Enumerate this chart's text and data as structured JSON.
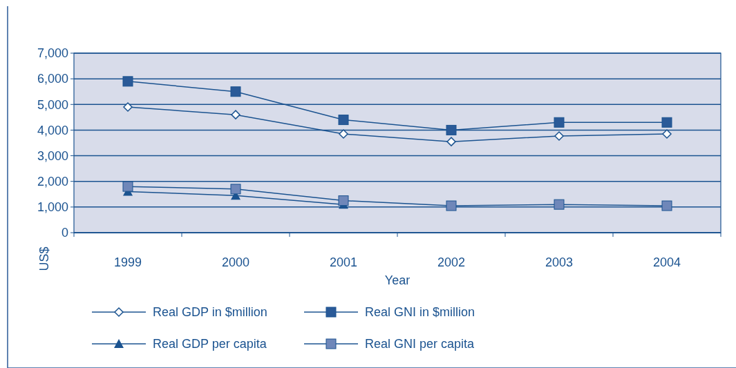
{
  "chart_data": {
    "type": "line",
    "xlabel": "Year",
    "ylabel": "US$",
    "categories": [
      "1999",
      "2000",
      "2001",
      "2002",
      "2003",
      "2004"
    ],
    "series": [
      {
        "name": "Real GDP in $million",
        "color": "#1b5390",
        "marker": "diamond",
        "values": [
          4900,
          4600,
          3850,
          3550,
          3770,
          3850
        ]
      },
      {
        "name": "Real GNI in $million",
        "color": "#2a5a98",
        "marker": "square",
        "values": [
          5900,
          5500,
          4400,
          4000,
          4300,
          4300
        ]
      },
      {
        "name": "Real GDP per capita",
        "color": "#1b5390",
        "marker": "triangle",
        "values": [
          1600,
          1450,
          1100,
          null,
          null,
          null
        ]
      },
      {
        "name": "Real GNI per capita",
        "color": "#6f87b9",
        "marker": "square",
        "values": [
          1800,
          1700,
          1250,
          1050,
          1100,
          1050
        ]
      }
    ],
    "ylim": [
      0,
      7000
    ],
    "yticks": [
      {
        "value": 0,
        "label": "0"
      },
      {
        "value": 1000,
        "label": "1,000"
      },
      {
        "value": 2000,
        "label": "2,000"
      },
      {
        "value": 3000,
        "label": "3,000"
      },
      {
        "value": 4000,
        "label": "4,000"
      },
      {
        "value": 5000,
        "label": "5,000"
      },
      {
        "value": 6000,
        "label": "6,000"
      },
      {
        "value": 7000,
        "label": "7,000"
      }
    ],
    "grid": "y",
    "legend": "bottom",
    "line_style": "solid"
  }
}
